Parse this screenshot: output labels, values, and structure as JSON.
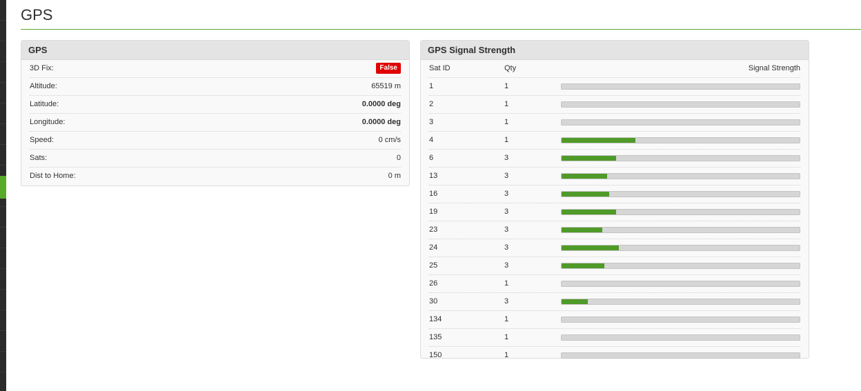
{
  "page": {
    "title": "GPS"
  },
  "colors": {
    "accent": "#59aa29",
    "bar_fill": "#4f9a28",
    "badge_false": "#e00000"
  },
  "gps": {
    "header": "GPS",
    "rows": [
      {
        "label": "3D Fix:",
        "value": "False",
        "style": "badge"
      },
      {
        "label": "Altitude:",
        "value": "65519 m",
        "style": "plain"
      },
      {
        "label": "Latitude:",
        "value": "0.0000 deg",
        "style": "bold"
      },
      {
        "label": "Longitude:",
        "value": "0.0000 deg",
        "style": "bold"
      },
      {
        "label": "Speed:",
        "value": "0 cm/s",
        "style": "plain"
      },
      {
        "label": "Sats:",
        "value": "0",
        "style": "plain"
      },
      {
        "label": "Dist to Home:",
        "value": "0 m",
        "style": "plain"
      }
    ]
  },
  "signal": {
    "header": "GPS Signal Strength",
    "columns": {
      "sat_id": "Sat ID",
      "qty": "Qty",
      "strength": "Signal Strength"
    },
    "rows": [
      {
        "sat_id": "1",
        "qty": "1",
        "strength_pct": 0
      },
      {
        "sat_id": "2",
        "qty": "1",
        "strength_pct": 0
      },
      {
        "sat_id": "3",
        "qty": "1",
        "strength_pct": 0
      },
      {
        "sat_id": "4",
        "qty": "1",
        "strength_pct": 31
      },
      {
        "sat_id": "6",
        "qty": "3",
        "strength_pct": 23
      },
      {
        "sat_id": "13",
        "qty": "3",
        "strength_pct": 19
      },
      {
        "sat_id": "16",
        "qty": "3",
        "strength_pct": 20
      },
      {
        "sat_id": "19",
        "qty": "3",
        "strength_pct": 23
      },
      {
        "sat_id": "23",
        "qty": "3",
        "strength_pct": 17
      },
      {
        "sat_id": "24",
        "qty": "3",
        "strength_pct": 24
      },
      {
        "sat_id": "25",
        "qty": "3",
        "strength_pct": 18
      },
      {
        "sat_id": "26",
        "qty": "1",
        "strength_pct": 0
      },
      {
        "sat_id": "30",
        "qty": "3",
        "strength_pct": 11
      },
      {
        "sat_id": "134",
        "qty": "1",
        "strength_pct": 0
      },
      {
        "sat_id": "135",
        "qty": "1",
        "strength_pct": 0
      },
      {
        "sat_id": "150",
        "qty": "1",
        "strength_pct": 0
      }
    ]
  }
}
